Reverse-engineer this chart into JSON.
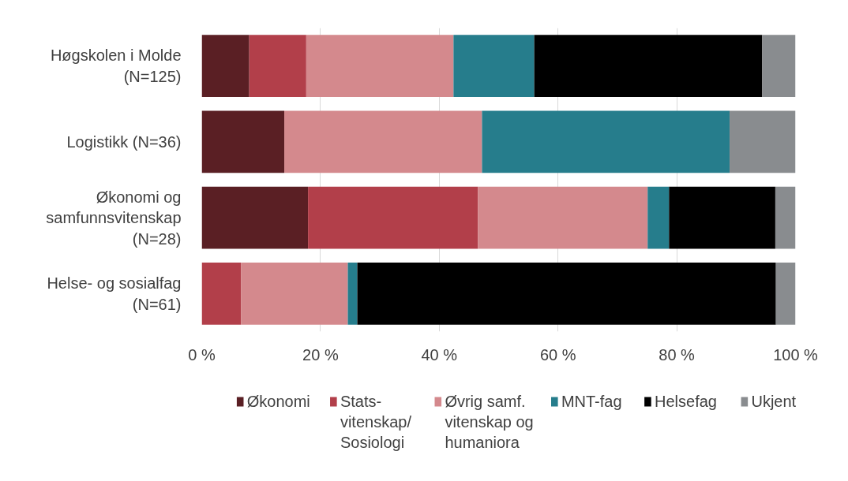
{
  "chart_data": {
    "type": "bar",
    "orientation": "horizontal",
    "stacked": true,
    "categories": [
      "Høgskolen i Molde\n(N=125)",
      "Logistikk (N=36)",
      "Økonomi og\nsamfunnsvitenskap\n(N=28)",
      "Helse- og sosialfag\n(N=61)"
    ],
    "series": [
      {
        "name": "Økonomi",
        "color": "#5a1f24",
        "values": [
          8.0,
          13.9,
          17.9,
          0
        ]
      },
      {
        "name": "Stats-\nvitenskap/\nSosiologi",
        "color": "#b23f4a",
        "values": [
          9.6,
          0,
          28.6,
          6.6
        ]
      },
      {
        "name": "Øvrig samf.\nvitenskap og\nhumaniora",
        "color": "#d4898d",
        "values": [
          24.8,
          33.3,
          28.6,
          18.0
        ]
      },
      {
        "name": "MNT-fag",
        "color": "#267d8c",
        "values": [
          13.6,
          41.7,
          3.6,
          1.6
        ]
      },
      {
        "name": "Helsefag",
        "color": "#000000",
        "values": [
          38.4,
          0,
          17.9,
          70.5
        ]
      },
      {
        "name": "Ukjent",
        "color": "#898c8f",
        "values": [
          5.6,
          11.1,
          3.6,
          3.3
        ]
      }
    ],
    "xlim": [
      0,
      100
    ],
    "xticks": [
      {
        "value": 0,
        "label": "0 %"
      },
      {
        "value": 20,
        "label": "20 %"
      },
      {
        "value": 40,
        "label": "40 %"
      },
      {
        "value": 60,
        "label": "60 %"
      },
      {
        "value": 80,
        "label": "80 %"
      },
      {
        "value": 100,
        "label": "100 %"
      }
    ],
    "grid": "x",
    "legend": "bottom"
  }
}
